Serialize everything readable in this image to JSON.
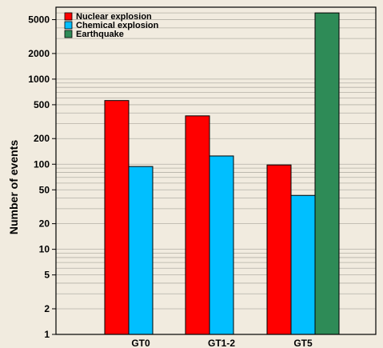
{
  "chart_data": {
    "type": "bar",
    "title": "",
    "xlabel": "",
    "ylabel": "Number of events",
    "yscale": "log",
    "ylim": [
      1,
      7000
    ],
    "yticks": [
      1,
      2,
      5,
      10,
      20,
      50,
      100,
      200,
      500,
      1000,
      2000,
      5000
    ],
    "grid": true,
    "legend": "top-left",
    "categories": [
      "GT0",
      "GT1-2",
      "GT5"
    ],
    "series": [
      {
        "name": "Nuclear explosion",
        "color": "#ff0000",
        "values": [
          560,
          370,
          98
        ]
      },
      {
        "name": "Chemical explosion",
        "color": "#00bfff",
        "values": [
          94,
          125,
          43
        ]
      },
      {
        "name": "Earthquake",
        "color": "#2e8b57",
        "values": [
          null,
          null,
          6000
        ]
      }
    ]
  }
}
